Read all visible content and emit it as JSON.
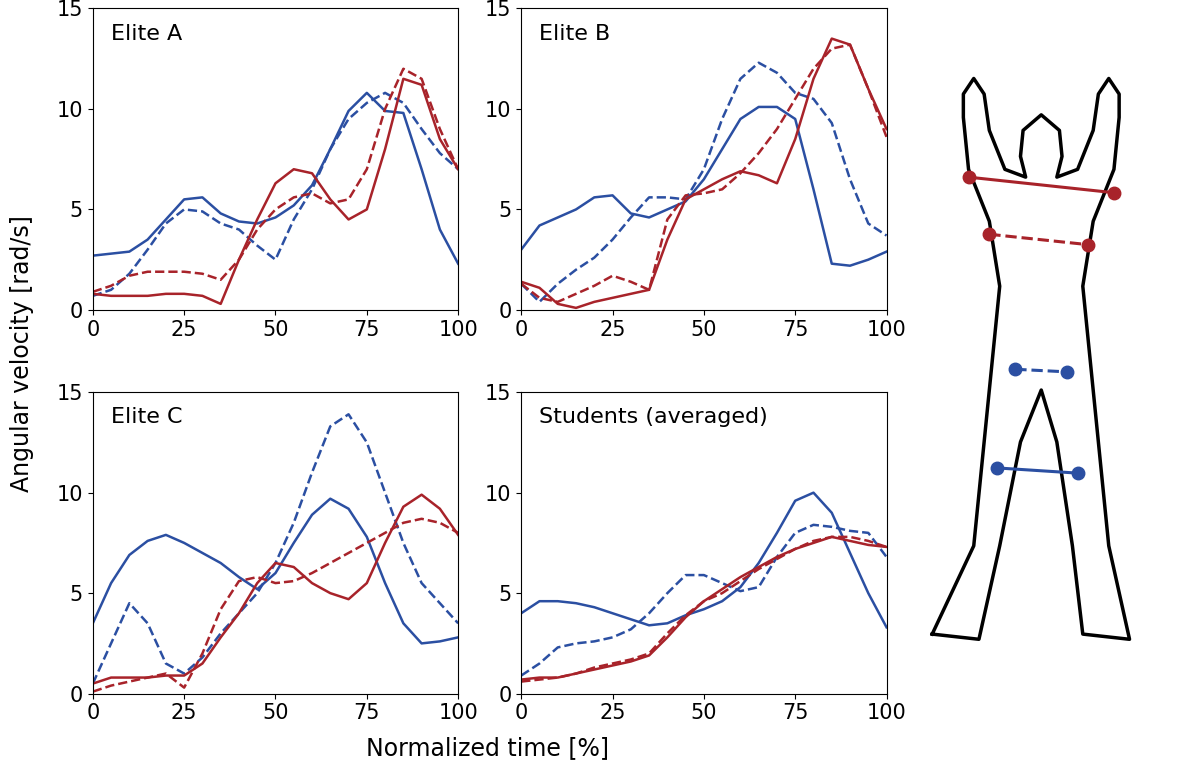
{
  "xlabel": "Normalized time [%]",
  "ylabel": "Angular velocity [rad/s]",
  "chart_data": [
    {
      "type": "line",
      "title": "Elite A",
      "x": [
        0,
        5,
        10,
        15,
        20,
        25,
        30,
        35,
        40,
        45,
        50,
        55,
        60,
        65,
        70,
        75,
        80,
        85,
        90,
        95,
        100
      ],
      "xlim": [
        0,
        100
      ],
      "ylim": [
        0,
        15
      ],
      "xticks": [
        0,
        25,
        50,
        75,
        100
      ],
      "yticks": [
        0,
        5,
        10,
        15
      ],
      "series": [
        {
          "color": "#2b4fa2",
          "line_style": "solid",
          "values": [
            2.7,
            2.8,
            2.9,
            3.5,
            4.5,
            5.5,
            5.6,
            4.8,
            4.4,
            4.3,
            4.6,
            5.2,
            6.2,
            8.0,
            9.9,
            10.8,
            9.9,
            9.8,
            7.0,
            4.0,
            2.3
          ]
        },
        {
          "color": "#2b4fa2",
          "line_style": "dashed",
          "values": [
            0.7,
            1.0,
            1.8,
            3.0,
            4.3,
            5.0,
            4.9,
            4.3,
            4.0,
            3.2,
            2.5,
            4.5,
            6.0,
            8.0,
            9.5,
            10.3,
            10.8,
            10.3,
            9.0,
            7.8,
            7.0
          ]
        },
        {
          "color": "#a8232a",
          "line_style": "solid",
          "values": [
            0.8,
            0.7,
            0.7,
            0.7,
            0.8,
            0.8,
            0.7,
            0.3,
            2.5,
            4.5,
            6.3,
            7.0,
            6.8,
            5.5,
            4.5,
            5.0,
            8.0,
            11.5,
            11.2,
            8.5,
            7.0
          ]
        },
        {
          "color": "#a8232a",
          "line_style": "dashed",
          "values": [
            0.9,
            1.2,
            1.7,
            1.9,
            1.9,
            1.9,
            1.8,
            1.5,
            2.5,
            4.0,
            5.0,
            5.6,
            5.8,
            5.3,
            5.5,
            7.0,
            10.0,
            12.0,
            11.5,
            9.0,
            7.0
          ]
        }
      ]
    },
    {
      "type": "line",
      "title": "Elite B",
      "x": [
        0,
        5,
        10,
        15,
        20,
        25,
        30,
        35,
        40,
        45,
        50,
        55,
        60,
        65,
        70,
        75,
        80,
        85,
        90,
        95,
        100
      ],
      "xlim": [
        0,
        100
      ],
      "ylim": [
        0,
        15
      ],
      "xticks": [
        0,
        25,
        50,
        75,
        100
      ],
      "yticks": [
        0,
        5,
        10,
        15
      ],
      "series": [
        {
          "color": "#2b4fa2",
          "line_style": "solid",
          "values": [
            3.0,
            4.2,
            4.6,
            5.0,
            5.6,
            5.7,
            4.8,
            4.6,
            5.0,
            5.4,
            6.5,
            8.0,
            9.5,
            10.1,
            10.1,
            9.5,
            6.0,
            2.3,
            2.2,
            2.5,
            2.9
          ]
        },
        {
          "color": "#2b4fa2",
          "line_style": "dashed",
          "values": [
            1.3,
            0.4,
            1.3,
            2.0,
            2.6,
            3.5,
            4.6,
            5.6,
            5.6,
            5.5,
            7.0,
            9.5,
            11.5,
            12.3,
            11.8,
            10.8,
            10.5,
            9.3,
            6.5,
            4.3,
            3.7
          ]
        },
        {
          "color": "#a8232a",
          "line_style": "solid",
          "values": [
            1.4,
            1.1,
            0.3,
            0.1,
            0.4,
            0.6,
            0.8,
            1.0,
            3.5,
            5.5,
            6.0,
            6.5,
            6.9,
            6.7,
            6.3,
            8.5,
            11.5,
            13.5,
            13.2,
            11.0,
            9.0
          ]
        },
        {
          "color": "#a8232a",
          "line_style": "dashed",
          "values": [
            1.3,
            0.6,
            0.4,
            0.8,
            1.2,
            1.7,
            1.4,
            1.0,
            4.5,
            5.7,
            5.8,
            6.0,
            6.8,
            7.8,
            9.0,
            10.5,
            12.0,
            13.0,
            13.2,
            11.0,
            8.6
          ]
        }
      ]
    },
    {
      "type": "line",
      "title": "Elite C",
      "x": [
        0,
        5,
        10,
        15,
        20,
        25,
        30,
        35,
        40,
        45,
        50,
        55,
        60,
        65,
        70,
        75,
        80,
        85,
        90,
        95,
        100
      ],
      "xlim": [
        0,
        100
      ],
      "ylim": [
        0,
        15
      ],
      "xticks": [
        0,
        25,
        50,
        75,
        100
      ],
      "yticks": [
        0,
        5,
        10,
        15
      ],
      "series": [
        {
          "color": "#2b4fa2",
          "line_style": "solid",
          "values": [
            3.5,
            5.5,
            6.9,
            7.6,
            7.9,
            7.5,
            7.0,
            6.5,
            5.8,
            5.2,
            6.0,
            7.5,
            8.9,
            9.7,
            9.2,
            7.8,
            5.5,
            3.5,
            2.5,
            2.6,
            2.8
          ]
        },
        {
          "color": "#2b4fa2",
          "line_style": "dashed",
          "values": [
            0.5,
            2.5,
            4.5,
            3.5,
            1.5,
            1.0,
            1.8,
            3.0,
            4.0,
            5.0,
            6.5,
            8.5,
            11.0,
            13.3,
            13.9,
            12.5,
            10.0,
            7.5,
            5.5,
            4.5,
            3.5
          ]
        },
        {
          "color": "#a8232a",
          "line_style": "solid",
          "values": [
            0.5,
            0.8,
            0.8,
            0.8,
            0.9,
            0.9,
            1.5,
            2.8,
            4.0,
            5.5,
            6.5,
            6.3,
            5.5,
            5.0,
            4.7,
            5.5,
            7.5,
            9.3,
            9.9,
            9.2,
            7.9
          ]
        },
        {
          "color": "#a8232a",
          "line_style": "dashed",
          "values": [
            0.1,
            0.4,
            0.6,
            0.8,
            1.0,
            0.3,
            2.0,
            4.2,
            5.6,
            5.8,
            5.5,
            5.6,
            6.0,
            6.5,
            7.0,
            7.5,
            8.0,
            8.5,
            8.7,
            8.5,
            8.0
          ]
        }
      ]
    },
    {
      "type": "line",
      "title": "Students (averaged)",
      "x": [
        0,
        5,
        10,
        15,
        20,
        25,
        30,
        35,
        40,
        45,
        50,
        55,
        60,
        65,
        70,
        75,
        80,
        85,
        90,
        95,
        100
      ],
      "xlim": [
        0,
        100
      ],
      "ylim": [
        0,
        15
      ],
      "xticks": [
        0,
        25,
        50,
        75,
        100
      ],
      "yticks": [
        0,
        5,
        10,
        15
      ],
      "series": [
        {
          "color": "#2b4fa2",
          "line_style": "solid",
          "values": [
            4.0,
            4.6,
            4.6,
            4.5,
            4.3,
            4.0,
            3.7,
            3.4,
            3.5,
            3.9,
            4.2,
            4.6,
            5.3,
            6.5,
            8.0,
            9.6,
            10.0,
            9.0,
            7.0,
            5.0,
            3.3
          ]
        },
        {
          "color": "#2b4fa2",
          "line_style": "dashed",
          "values": [
            0.9,
            1.5,
            2.3,
            2.5,
            2.6,
            2.8,
            3.2,
            4.0,
            5.0,
            5.9,
            5.9,
            5.5,
            5.1,
            5.3,
            6.8,
            8.0,
            8.4,
            8.3,
            8.1,
            8.0,
            6.8
          ]
        },
        {
          "color": "#a8232a",
          "line_style": "solid",
          "values": [
            0.7,
            0.8,
            0.8,
            1.0,
            1.2,
            1.4,
            1.6,
            1.9,
            2.8,
            3.8,
            4.6,
            5.2,
            5.8,
            6.3,
            6.8,
            7.2,
            7.5,
            7.8,
            7.6,
            7.4,
            7.3
          ]
        },
        {
          "color": "#a8232a",
          "line_style": "dashed",
          "values": [
            0.6,
            0.7,
            0.8,
            1.0,
            1.3,
            1.5,
            1.7,
            2.0,
            3.0,
            3.9,
            4.6,
            5.0,
            5.6,
            6.2,
            6.7,
            7.2,
            7.6,
            7.8,
            7.8,
            7.6,
            7.3
          ]
        }
      ]
    }
  ]
}
